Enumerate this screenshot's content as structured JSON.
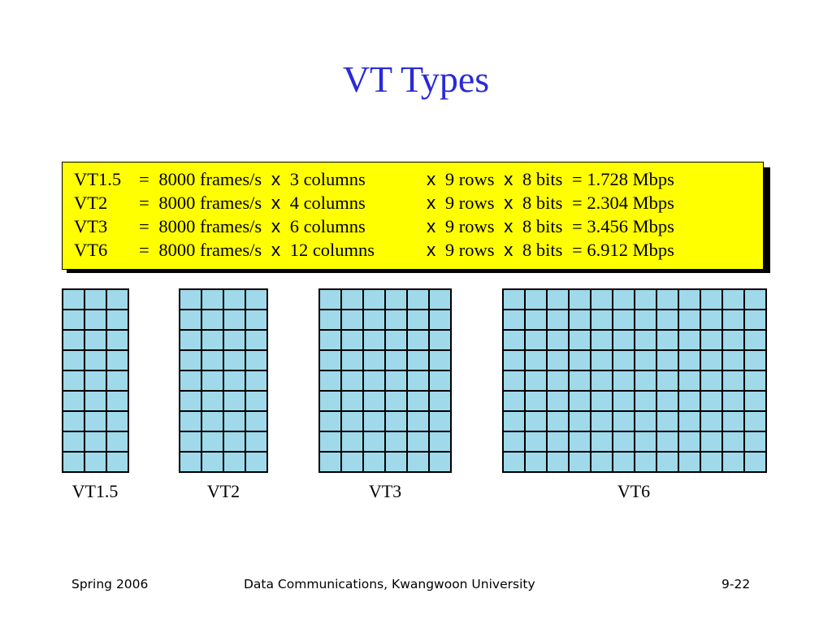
{
  "slide": {
    "title": "VT Types",
    "title_color": "#2a2ad8"
  },
  "formula_box": {
    "background_color": "#ffff00",
    "lines": [
      {
        "name": "VT1.5",
        "eq": "=",
        "rate": "8000 frames/s",
        "x1": "x",
        "cols": "3 columns",
        "x2": "x",
        "rows": "9 rows",
        "x3": "x",
        "bits": "8 bits",
        "result": "= 1.728 Mbps"
      },
      {
        "name": "VT2",
        "eq": "=",
        "rate": "8000 frames/s",
        "x1": "x",
        "cols": "4 columns",
        "x2": "x",
        "rows": "9 rows",
        "x3": "x",
        "bits": "8 bits",
        "result": "= 2.304 Mbps"
      },
      {
        "name": "VT3",
        "eq": "=",
        "rate": "8000 frames/s",
        "x1": "x",
        "cols": "6 columns",
        "x2": "x",
        "rows": "9 rows",
        "x3": "x",
        "bits": "8 bits",
        "result": "= 3.456 Mbps"
      },
      {
        "name": "VT6",
        "eq": "=",
        "rate": "8000 frames/s",
        "x1": "x",
        "cols": "12 columns",
        "x2": "x",
        "rows": "9 rows",
        "x3": "x",
        "bits": "8 bits",
        "result": "= 6.912 Mbps"
      }
    ]
  },
  "diagram": {
    "cell_color": "#9fd9ea",
    "vts": [
      {
        "label": "VT1.5",
        "columns": 3,
        "rows": 9
      },
      {
        "label": "VT2",
        "columns": 4,
        "rows": 9
      },
      {
        "label": "VT3",
        "columns": 6,
        "rows": 9
      },
      {
        "label": "VT6",
        "columns": 12,
        "rows": 9
      }
    ]
  },
  "footer": {
    "left": "Spring 2006",
    "center": "Data Communications, Kwangwoon University",
    "right": "9-22"
  }
}
